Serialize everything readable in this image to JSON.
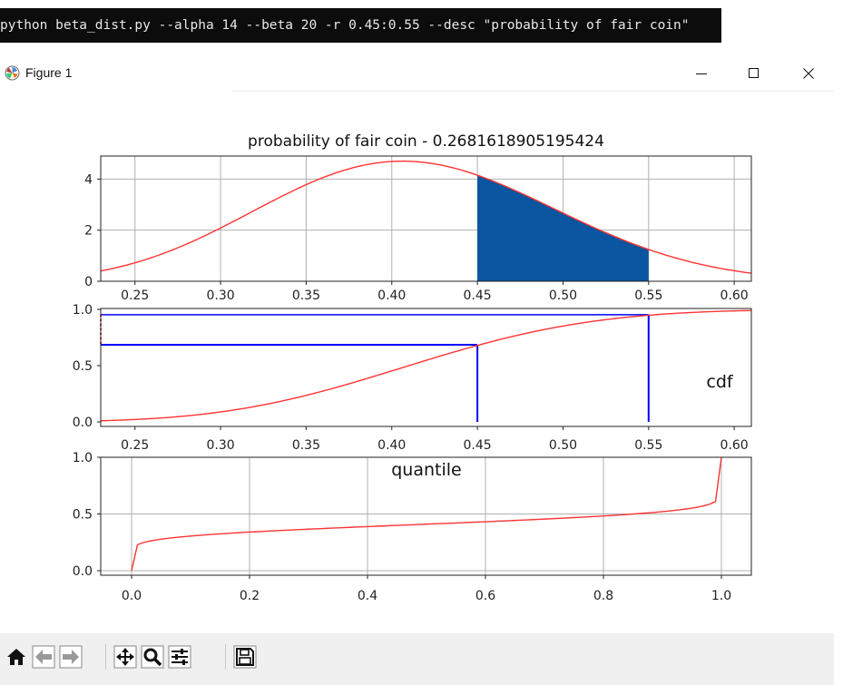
{
  "command": "python beta_dist.py --alpha 14 --beta 20 -r 0.45:0.55 --desc \"probability of fair coin\"",
  "window": {
    "title": "Figure 1",
    "icon": "matplotlib-icon",
    "controls": [
      "minimize-icon",
      "maximize-icon",
      "close-icon"
    ]
  },
  "toolbar": {
    "buttons": [
      {
        "name": "home-button",
        "icon": "home-icon"
      },
      {
        "name": "back-button",
        "icon": "arrow-left-icon"
      },
      {
        "name": "forward-button",
        "icon": "arrow-right-icon"
      },
      {
        "name": "pan-button",
        "icon": "move-icon"
      },
      {
        "name": "zoom-button",
        "icon": "zoom-icon"
      },
      {
        "name": "configure-subplots-button",
        "icon": "sliders-icon"
      },
      {
        "name": "save-button",
        "icon": "save-icon"
      }
    ]
  },
  "colors": {
    "curve": "#ff3333",
    "fill": "#0a559f",
    "lines": "#0000ff",
    "grid": "#b0b0b0"
  },
  "chart_data": [
    {
      "type": "area",
      "title": "probability of fair coin - 0.2681618905195424",
      "series": [
        {
          "distribution": "beta",
          "alpha": 14,
          "beta": 20
        }
      ],
      "shaded_range": [
        0.45,
        0.55
      ],
      "xlim": [
        0.23,
        0.61
      ],
      "ylim": [
        0,
        4.9
      ],
      "xticks": [
        "0.25",
        "0.30",
        "0.35",
        "0.40",
        "0.45",
        "0.50",
        "0.55",
        "0.60"
      ],
      "yticks": [
        "0",
        "2",
        "4"
      ],
      "grid": true
    },
    {
      "type": "line",
      "label": "cdf",
      "series": [
        {
          "distribution": "beta cdf",
          "alpha": 14,
          "beta": 20
        }
      ],
      "markers": [
        {
          "x": 0.45,
          "y": 0.685
        },
        {
          "x": 0.55,
          "y": 0.953
        }
      ],
      "xlim": [
        0.23,
        0.61
      ],
      "ylim": [
        0,
        1.0
      ],
      "xticks": [
        "0.25",
        "0.30",
        "0.35",
        "0.40",
        "0.45",
        "0.50",
        "0.55",
        "0.60"
      ],
      "yticks": [
        "0.0",
        "0.5",
        "1.0"
      ],
      "grid": false
    },
    {
      "type": "line",
      "label": "quantile",
      "series": [
        {
          "distribution": "beta ppf",
          "alpha": 14,
          "beta": 20
        }
      ],
      "xlim": [
        0,
        1
      ],
      "ylim": [
        0,
        1
      ],
      "xticks": [
        "0.0",
        "0.2",
        "0.4",
        "0.6",
        "0.8",
        "1.0"
      ],
      "yticks": [
        "0.0",
        "0.5",
        "1.0"
      ],
      "grid": true
    }
  ]
}
